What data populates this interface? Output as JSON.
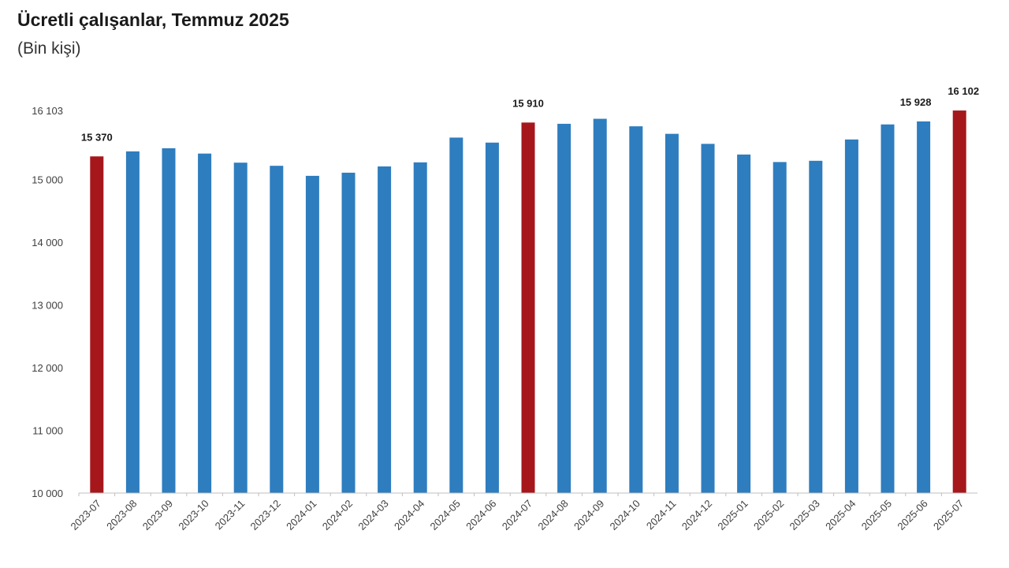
{
  "title": "Ücretli çalışanlar, Temmuz 2025",
  "subtitle": "(Bin kişi)",
  "colors": {
    "bar": "#2E7DBF",
    "highlight": "#A6171C",
    "axis": "#bfbfbf"
  },
  "chart_data": {
    "type": "bar",
    "title": "Ücretli çalışanlar, Temmuz 2025",
    "subtitle": "(Bin kişi)",
    "xlabel": "",
    "ylabel": "",
    "ylim": [
      10000,
      16103
    ],
    "y_ticks": [
      10000,
      11000,
      12000,
      13000,
      14000,
      15000,
      16103
    ],
    "y_tick_labels": [
      "10 000",
      "11 000",
      "12 000",
      "13 000",
      "14 000",
      "15 000",
      "16 103"
    ],
    "grid": false,
    "categories": [
      "2023-07",
      "2023-08",
      "2023-09",
      "2023-10",
      "2023-11",
      "2023-12",
      "2024-01",
      "2024-02",
      "2024-03",
      "2024-04",
      "2024-05",
      "2024-06",
      "2024-07",
      "2024-08",
      "2024-09",
      "2024-10",
      "2024-11",
      "2024-12",
      "2025-01",
      "2025-02",
      "2025-03",
      "2025-04",
      "2025-05",
      "2025-06",
      "2025-07"
    ],
    "values": [
      15370,
      15450,
      15500,
      15415,
      15270,
      15220,
      15060,
      15110,
      15210,
      15275,
      15670,
      15590,
      15910,
      15890,
      15970,
      15850,
      15730,
      15570,
      15400,
      15280,
      15300,
      15640,
      15880,
      15928,
      16102
    ],
    "highlighted": [
      "2023-07",
      "2024-07",
      "2025-07"
    ],
    "data_labels": [
      {
        "category": "2023-07",
        "text": "15 370"
      },
      {
        "category": "2024-07",
        "text": "15 910"
      },
      {
        "category": "2025-06",
        "text": "15 928"
      },
      {
        "category": "2025-07",
        "text": "16 102"
      }
    ]
  }
}
